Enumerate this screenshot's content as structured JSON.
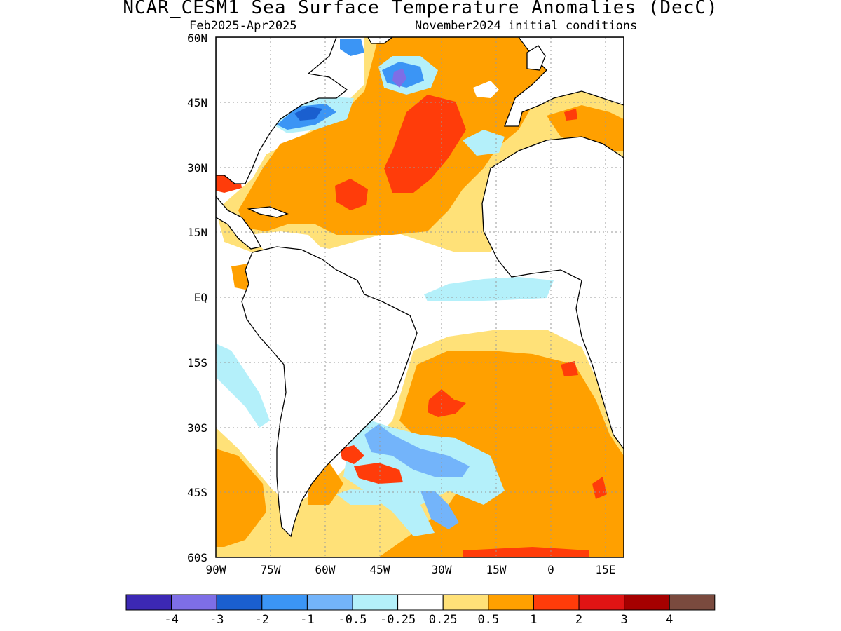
{
  "title": "NCAR_CESM1 Sea Surface Temperature Anomalies (DecC)",
  "subtitle_left": "Feb2025-Apr2025",
  "subtitle_right": "November2024 initial conditions",
  "lat_labels": [
    "60N",
    "45N",
    "30N",
    "15N",
    "EQ",
    "15S",
    "30S",
    "45S",
    "60S"
  ],
  "lon_labels": [
    "90W",
    "75W",
    "60W",
    "45W",
    "30W",
    "15W",
    "0",
    "15E"
  ],
  "colorbar": {
    "colors": [
      "#3c28b4",
      "#7e6ee6",
      "#1a5fcf",
      "#3b95f5",
      "#73b4fa",
      "#b4f0fa",
      "#ffffff",
      "#ffe178",
      "#ffa000",
      "#ff3c0a",
      "#e01414",
      "#a50000",
      "#7a4a3e"
    ],
    "labels": [
      "-4",
      "-3",
      "-2",
      "-1",
      "-0.5",
      "-0.25",
      "0.25",
      "0.5",
      "1",
      "2",
      "3",
      "4"
    ]
  },
  "map_colors": {
    "land": "#ffffff",
    "coast": "#000000",
    "grid": "#9a9a9a"
  }
}
